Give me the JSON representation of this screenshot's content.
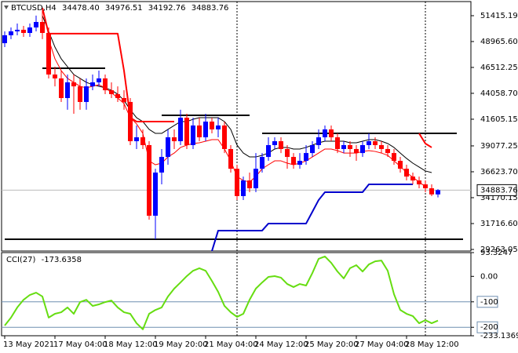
{
  "chart_data": [
    {
      "type": "candlestick",
      "title": "BTCUSD,H4",
      "header_labels": [
        "34478.40",
        "34976.51",
        "34192.76",
        "34883.76"
      ],
      "categories": [
        "13 May 2021",
        null,
        null,
        null,
        null,
        null,
        null,
        null,
        "17 May 04:00",
        null,
        null,
        null,
        null,
        null,
        null,
        null,
        "18 May 12:00",
        null,
        null,
        null,
        null,
        null,
        null,
        null,
        "19 May 20:00",
        null,
        null,
        null,
        null,
        null,
        null,
        null,
        "21 May 04:00",
        null,
        null,
        null,
        null,
        null,
        null,
        null,
        "24 May 12:00",
        null,
        null,
        null,
        null,
        null,
        null,
        null,
        "25 May 20:00",
        null,
        null,
        null,
        null,
        null,
        null,
        null,
        "27 May 04:00",
        null,
        null,
        null,
        null,
        null,
        null,
        null,
        "28 May 12:00",
        null,
        null,
        null,
        null,
        null
      ],
      "open": [
        48810,
        49560,
        49930,
        50080,
        49780,
        50300,
        50820,
        49780,
        45840,
        45470,
        43610,
        45100,
        44720,
        43240,
        44720,
        45100,
        45470,
        44350,
        43980,
        43610,
        43240,
        39520,
        39890,
        39150,
        32460,
        36550,
        38030,
        39890,
        39520,
        41750,
        39150,
        41010,
        39890,
        41380,
        40640,
        41010,
        38780,
        36910,
        34320,
        35800,
        35060,
        36910,
        38030,
        39150,
        39520,
        38780,
        38030,
        37290,
        37660,
        38400,
        39150,
        39890,
        40640,
        39890,
        38780,
        39150,
        38780,
        38400,
        39150,
        39520,
        39150,
        38780,
        38400,
        37660,
        36910,
        36170,
        35800,
        35430,
        35060,
        34478.4
      ],
      "high": [
        49930,
        50300,
        50670,
        50450,
        50670,
        51420,
        52160,
        50300,
        46580,
        46210,
        45840,
        45840,
        45470,
        45470,
        45840,
        46210,
        45840,
        45100,
        44720,
        44350,
        43610,
        41010,
        40640,
        39520,
        36910,
        38780,
        40640,
        40640,
        42500,
        42120,
        41750,
        41750,
        42120,
        41750,
        41750,
        41380,
        39150,
        37290,
        36170,
        36550,
        38400,
        38400,
        39890,
        39890,
        39890,
        39150,
        38400,
        38400,
        39150,
        39520,
        40640,
        41010,
        41010,
        40260,
        39520,
        39520,
        39150,
        39520,
        40260,
        39890,
        39520,
        39150,
        38780,
        38030,
        37290,
        36550,
        36170,
        35800,
        35430,
        34976.51
      ],
      "low": [
        48440,
        49190,
        49560,
        49410,
        49410,
        49930,
        49190,
        45470,
        44720,
        43240,
        42500,
        42120,
        42500,
        42500,
        44350,
        44720,
        43980,
        43610,
        43240,
        42500,
        39150,
        38780,
        38780,
        32090,
        30230,
        35430,
        37290,
        38780,
        39150,
        38780,
        38780,
        39520,
        39520,
        40260,
        39890,
        38400,
        36550,
        33950,
        33950,
        34690,
        34690,
        36550,
        37660,
        38780,
        38400,
        36910,
        36910,
        36910,
        37290,
        38030,
        38780,
        39520,
        39520,
        38400,
        38400,
        38030,
        37660,
        38030,
        38780,
        38780,
        38400,
        38030,
        37290,
        36550,
        35800,
        35430,
        35060,
        34690,
        34320,
        34192.76
      ],
      "close": [
        49560,
        49930,
        50080,
        49780,
        50300,
        50820,
        49780,
        45840,
        45470,
        43610,
        45100,
        44720,
        43240,
        44720,
        45100,
        45470,
        44350,
        43980,
        43610,
        43240,
        39520,
        39890,
        39150,
        32460,
        36550,
        38030,
        39890,
        39520,
        41750,
        39150,
        41010,
        39890,
        41380,
        40640,
        41010,
        38780,
        36910,
        34320,
        35800,
        35060,
        36910,
        38030,
        39150,
        39520,
        38780,
        38030,
        37290,
        37660,
        38400,
        39150,
        39890,
        40640,
        39890,
        38780,
        39150,
        38780,
        38400,
        39150,
        39520,
        39150,
        38780,
        38400,
        37660,
        36910,
        36170,
        35800,
        35430,
        35060,
        34478.4,
        34883.76
      ],
      "up_color": "#0000ff",
      "down_color": "#ff0000",
      "series": [
        {
          "color": "#000000",
          "width": 1,
          "values": [
            null,
            null,
            null,
            null,
            null,
            null,
            51420,
            49930,
            48440,
            47330,
            46580,
            45840,
            45470,
            45100,
            44870,
            44720,
            44580,
            44350,
            43980,
            43390,
            42500,
            41750,
            41380,
            40640,
            40260,
            40260,
            40640,
            41010,
            41380,
            41380,
            41600,
            41750,
            41750,
            41750,
            41750,
            41380,
            40640,
            39150,
            38400,
            38030,
            38030,
            38180,
            38400,
            38780,
            38930,
            38930,
            38780,
            38780,
            38930,
            39150,
            39370,
            39520,
            39520,
            39520,
            39520,
            39370,
            39370,
            39520,
            39670,
            39670,
            39520,
            39300,
            38930,
            38400,
            37890,
            37440,
            37070,
            36700,
            36550,
            null
          ]
        },
        {
          "color": "#ff0000",
          "width": 1,
          "values": [
            null,
            null,
            null,
            null,
            null,
            null,
            null,
            49190,
            47330,
            46210,
            45470,
            45100,
            44720,
            44580,
            44720,
            44870,
            44580,
            44130,
            43610,
            43090,
            41750,
            41160,
            40260,
            37660,
            37290,
            37440,
            38030,
            38400,
            38930,
            39150,
            39300,
            39370,
            39520,
            39670,
            39670,
            38780,
            37660,
            36170,
            35800,
            35660,
            36170,
            36910,
            37290,
            37660,
            37660,
            37440,
            37290,
            37440,
            37660,
            38030,
            38400,
            38780,
            38780,
            38630,
            38400,
            38400,
            38400,
            38550,
            38630,
            38550,
            38400,
            38180,
            37660,
            37140,
            36550,
            36100,
            35660,
            35210,
            null,
            null
          ]
        },
        {
          "color": "#ff0000",
          "width": 2,
          "values": [
            null,
            null,
            null,
            null,
            null,
            null,
            52160,
            49710,
            49710,
            49710,
            49710,
            49710,
            49710,
            49710,
            49710,
            49710,
            49710,
            49710,
            49710,
            46210,
            41750,
            41380,
            41380,
            41380,
            41380,
            41380,
            41380,
            41380,
            null,
            null,
            null,
            null,
            null,
            null,
            null,
            null,
            null,
            null,
            null,
            null,
            null,
            null,
            null,
            null,
            null,
            null,
            null,
            null,
            null,
            null,
            null,
            null,
            null,
            null,
            null,
            null,
            null,
            null,
            null,
            null,
            null,
            null,
            null,
            null,
            null,
            null,
            40260,
            39300,
            38930,
            null
          ]
        },
        {
          "color": "#0000cc",
          "width": 2,
          "values": [
            null,
            null,
            null,
            null,
            null,
            null,
            null,
            null,
            null,
            null,
            null,
            null,
            null,
            null,
            null,
            null,
            null,
            null,
            null,
            null,
            null,
            null,
            null,
            null,
            null,
            null,
            null,
            null,
            null,
            null,
            null,
            null,
            null,
            29110,
            31050,
            31050,
            31050,
            31050,
            31050,
            31050,
            31050,
            31050,
            31720,
            31720,
            31720,
            31720,
            31720,
            31720,
            31720,
            32830,
            33950,
            34690,
            34690,
            34690,
            34690,
            34690,
            34690,
            34690,
            35430,
            35430,
            35430,
            35430,
            35430,
            35430,
            35430,
            35430,
            null,
            null,
            null,
            null
          ]
        }
      ],
      "levels": [
        {
          "value": 46430,
          "from": 6,
          "to": 16
        },
        {
          "value": 41970,
          "from": 25,
          "to": 39
        },
        {
          "value": 40260,
          "from": 41,
          "to": 72
        },
        {
          "value": 30230,
          "from": 0,
          "to": 73
        }
      ],
      "vlines": [
        37,
        67
      ],
      "last_price": 34883.76,
      "ylim": [
        29114,
        52753
      ],
      "yticks": [
        51415.19,
        {
          "value": 48965.6,
          "label": "48965.60"
        },
        46512.25,
        {
          "value": 44058.7,
          "label": "44058.70"
        },
        41605.15,
        39077.25,
        {
          "value": 36623.7,
          "label": "36623.70"
        },
        34170.15,
        {
          "value": 31716.6,
          "label": "31716.60"
        },
        29263.05
      ]
    },
    {
      "type": "line",
      "title": "CCI(27)",
      "series": [
        {
          "color": "#66dd11",
          "width": 2,
          "values": [
            -193,
            -162,
            -122,
            -92,
            -73,
            -64,
            -79,
            -162,
            -147,
            -141,
            -122,
            -147,
            -101,
            -92,
            -116,
            -110,
            -101,
            -95,
            -122,
            -141,
            -147,
            -184,
            -208,
            -147,
            -132,
            -122,
            -79,
            -48,
            -24,
            1,
            22,
            32,
            22,
            -18,
            -61,
            -116,
            -141,
            -159,
            -147,
            -92,
            -48,
            -24,
            -2,
            1,
            -5,
            -30,
            -42,
            -30,
            -36,
            13,
            69,
            78,
            53,
            19,
            -8,
            32,
            44,
            19,
            47,
            59,
            62,
            22,
            -70,
            -132,
            -147,
            -156,
            -184,
            -172,
            -184,
            -173.6358
          ]
        }
      ],
      "levels": [
        -100,
        -200
      ],
      "level_color": "#6f8fb0",
      "ylim": [
        -233.1369,
        93.3247
      ],
      "yticks": [
        93.3247,
        {
          "value": 0,
          "label": "0.00"
        },
        -100,
        -200,
        -233.1369
      ]
    }
  ]
}
